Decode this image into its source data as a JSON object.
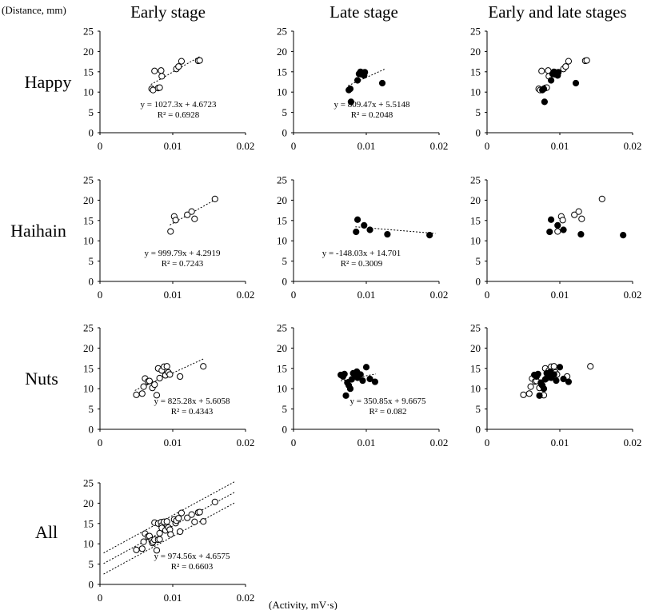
{
  "figure": {
    "y_unit_label": "(Distance, mm)",
    "x_unit_label": "(Activity, mV·s)",
    "column_titles": [
      "Early stage",
      "Late stage",
      "Early and late stages"
    ],
    "row_titles": [
      "Happy",
      "Haihain",
      "Nuts",
      "All"
    ],
    "y_ticks": [
      "0",
      "5",
      "10",
      "15",
      "20",
      "25"
    ],
    "x_ticks": [
      "0",
      "0.01",
      "0.02"
    ]
  },
  "colors": {
    "open_marker_fill": "#ffffff",
    "filled_marker_fill": "#000000",
    "axis": "#000000"
  },
  "chart_data": [
    {
      "id": "happy-early",
      "type": "scatter",
      "row": 0,
      "col": 0,
      "xlim": [
        0,
        0.02
      ],
      "ylim": [
        0,
        25
      ],
      "points": [
        [
          0.0071,
          10.8
        ],
        [
          0.0073,
          10.5
        ],
        [
          0.0075,
          15.2
        ],
        [
          0.008,
          11.0
        ],
        [
          0.0082,
          11.1
        ],
        [
          0.0084,
          15.3
        ],
        [
          0.0085,
          13.9
        ],
        [
          0.0105,
          15.7
        ],
        [
          0.0108,
          16.3
        ],
        [
          0.0112,
          17.6
        ],
        [
          0.0135,
          17.7
        ],
        [
          0.0137,
          17.8
        ]
      ],
      "open": true,
      "trend": {
        "slope": 1027.3,
        "intercept": 4.6723,
        "x": [
          0.007,
          0.0138
        ]
      },
      "equation": "y = 1027.3x + 4.6723",
      "r2": "R² = 0.6928"
    },
    {
      "id": "happy-late",
      "type": "scatter",
      "row": 0,
      "col": 1,
      "xlim": [
        0,
        0.02
      ],
      "ylim": [
        0,
        25
      ],
      "points": [
        [
          0.0076,
          10.5
        ],
        [
          0.0078,
          10.8
        ],
        [
          0.0079,
          7.6
        ],
        [
          0.0088,
          12.9
        ],
        [
          0.009,
          14.5
        ],
        [
          0.0092,
          15.0
        ],
        [
          0.0093,
          14.4
        ],
        [
          0.0095,
          14.8
        ],
        [
          0.0097,
          14.1
        ],
        [
          0.0098,
          14.9
        ],
        [
          0.0122,
          12.2
        ]
      ],
      "filled": true,
      "trend": {
        "slope": 809.47,
        "intercept": 5.5148,
        "x": [
          0.0075,
          0.0125
        ]
      },
      "equation": "y = 809.47x + 5.5148",
      "r2": "R² = 0.2048"
    },
    {
      "id": "happy-both",
      "type": "scatter",
      "row": 0,
      "col": 2,
      "xlim": [
        0,
        0.02
      ],
      "ylim": [
        0,
        25
      ],
      "open_points": [
        [
          0.0071,
          10.8
        ],
        [
          0.0073,
          10.5
        ],
        [
          0.0075,
          15.2
        ],
        [
          0.008,
          11.0
        ],
        [
          0.0082,
          11.1
        ],
        [
          0.0084,
          15.3
        ],
        [
          0.0085,
          13.9
        ],
        [
          0.0105,
          15.7
        ],
        [
          0.0108,
          16.3
        ],
        [
          0.0112,
          17.6
        ],
        [
          0.0135,
          17.7
        ],
        [
          0.0137,
          17.8
        ]
      ],
      "filled_points": [
        [
          0.0076,
          10.5
        ],
        [
          0.0078,
          10.8
        ],
        [
          0.0079,
          7.6
        ],
        [
          0.0088,
          12.9
        ],
        [
          0.009,
          14.5
        ],
        [
          0.0092,
          15.0
        ],
        [
          0.0093,
          14.4
        ],
        [
          0.0095,
          14.8
        ],
        [
          0.0097,
          14.1
        ],
        [
          0.0098,
          14.9
        ],
        [
          0.0122,
          12.2
        ]
      ]
    },
    {
      "id": "haihain-early",
      "type": "scatter",
      "row": 1,
      "col": 0,
      "xlim": [
        0,
        0.02
      ],
      "ylim": [
        0,
        25
      ],
      "points": [
        [
          0.0097,
          12.3
        ],
        [
          0.0102,
          16.0
        ],
        [
          0.0104,
          15.1
        ],
        [
          0.012,
          16.4
        ],
        [
          0.0126,
          17.2
        ],
        [
          0.013,
          15.4
        ],
        [
          0.0158,
          20.3
        ]
      ],
      "open": true,
      "trend": {
        "slope": 999.79,
        "intercept": 4.2919,
        "x": [
          0.0096,
          0.0159
        ]
      },
      "equation": "y = 999.79x + 4.2919",
      "r2": "R² = 0.7243"
    },
    {
      "id": "haihain-late",
      "type": "scatter",
      "row": 1,
      "col": 1,
      "xlim": [
        0,
        0.02
      ],
      "ylim": [
        0,
        25
      ],
      "points": [
        [
          0.0086,
          12.2
        ],
        [
          0.0088,
          15.2
        ],
        [
          0.0097,
          13.8
        ],
        [
          0.0105,
          12.7
        ],
        [
          0.0129,
          11.6
        ],
        [
          0.0187,
          11.4
        ]
      ],
      "filled": true,
      "trend": {
        "slope": -148.03,
        "intercept": 14.701,
        "x": [
          0.0085,
          0.0195
        ]
      },
      "equation": "y = -148.03x + 14.701",
      "r2": "R² = 0.3009"
    },
    {
      "id": "haihain-both",
      "type": "scatter",
      "row": 1,
      "col": 2,
      "xlim": [
        0,
        0.02
      ],
      "ylim": [
        0,
        25
      ],
      "open_points": [
        [
          0.0097,
          12.3
        ],
        [
          0.0102,
          16.0
        ],
        [
          0.0104,
          15.1
        ],
        [
          0.012,
          16.4
        ],
        [
          0.0126,
          17.2
        ],
        [
          0.013,
          15.4
        ],
        [
          0.0158,
          20.3
        ]
      ],
      "filled_points": [
        [
          0.0086,
          12.2
        ],
        [
          0.0088,
          15.2
        ],
        [
          0.0097,
          13.8
        ],
        [
          0.0105,
          12.7
        ],
        [
          0.0129,
          11.6
        ],
        [
          0.0187,
          11.4
        ]
      ]
    },
    {
      "id": "nuts-early",
      "type": "scatter",
      "row": 2,
      "col": 0,
      "xlim": [
        0,
        0.02
      ],
      "ylim": [
        0,
        25
      ],
      "points": [
        [
          0.005,
          8.5
        ],
        [
          0.0058,
          8.8
        ],
        [
          0.006,
          10.5
        ],
        [
          0.0062,
          12.5
        ],
        [
          0.0066,
          11.8
        ],
        [
          0.0068,
          11.9
        ],
        [
          0.0072,
          10.2
        ],
        [
          0.0075,
          11.0
        ],
        [
          0.0078,
          8.4
        ],
        [
          0.008,
          15.0
        ],
        [
          0.0082,
          12.6
        ],
        [
          0.0085,
          14.5
        ],
        [
          0.0088,
          15.4
        ],
        [
          0.009,
          13.3
        ],
        [
          0.0092,
          15.5
        ],
        [
          0.0094,
          14.0
        ],
        [
          0.0096,
          13.5
        ],
        [
          0.011,
          13.0
        ],
        [
          0.0142,
          15.5
        ]
      ],
      "open": true,
      "trend": {
        "slope": 825.28,
        "intercept": 5.6058,
        "x": [
          0.0048,
          0.0142
        ]
      },
      "equation": "y = 825.28x + 5.6058",
      "r2": "R² = 0.4343"
    },
    {
      "id": "nuts-late",
      "type": "scatter",
      "row": 2,
      "col": 1,
      "xlim": [
        0,
        0.02
      ],
      "ylim": [
        0,
        25
      ],
      "points": [
        [
          0.0065,
          13.4
        ],
        [
          0.0068,
          13.0
        ],
        [
          0.007,
          13.6
        ],
        [
          0.0072,
          8.3
        ],
        [
          0.0074,
          11.5
        ],
        [
          0.0076,
          10.8
        ],
        [
          0.0078,
          10.0
        ],
        [
          0.008,
          12.3
        ],
        [
          0.0082,
          13.8
        ],
        [
          0.0085,
          13.2
        ],
        [
          0.0087,
          14.2
        ],
        [
          0.0088,
          12.7
        ],
        [
          0.0092,
          13.5
        ],
        [
          0.0095,
          12.0
        ],
        [
          0.01,
          15.3
        ],
        [
          0.0105,
          12.4
        ],
        [
          0.0112,
          11.7
        ]
      ],
      "filled": true,
      "trend": {
        "slope": 350.85,
        "intercept": 9.6675,
        "x": [
          0.0065,
          0.0113
        ]
      },
      "equation": "y = 350.85x + 9.6675",
      "r2": "R² = 0.082"
    },
    {
      "id": "nuts-both",
      "type": "scatter",
      "row": 2,
      "col": 2,
      "xlim": [
        0,
        0.02
      ],
      "ylim": [
        0,
        25
      ],
      "open_points": [
        [
          0.005,
          8.5
        ],
        [
          0.0058,
          8.8
        ],
        [
          0.006,
          10.5
        ],
        [
          0.0062,
          12.5
        ],
        [
          0.0066,
          11.8
        ],
        [
          0.0068,
          11.9
        ],
        [
          0.0072,
          10.2
        ],
        [
          0.0075,
          11.0
        ],
        [
          0.0078,
          8.4
        ],
        [
          0.008,
          15.0
        ],
        [
          0.0082,
          12.6
        ],
        [
          0.0085,
          14.5
        ],
        [
          0.0088,
          15.4
        ],
        [
          0.009,
          13.3
        ],
        [
          0.0092,
          15.5
        ],
        [
          0.0094,
          14.0
        ],
        [
          0.0096,
          13.5
        ],
        [
          0.011,
          13.0
        ],
        [
          0.0142,
          15.5
        ]
      ],
      "filled_points": [
        [
          0.0065,
          13.4
        ],
        [
          0.0068,
          13.0
        ],
        [
          0.007,
          13.6
        ],
        [
          0.0072,
          8.3
        ],
        [
          0.0074,
          11.5
        ],
        [
          0.0076,
          10.8
        ],
        [
          0.0078,
          10.0
        ],
        [
          0.008,
          12.3
        ],
        [
          0.0082,
          13.8
        ],
        [
          0.0085,
          13.2
        ],
        [
          0.0087,
          14.2
        ],
        [
          0.0088,
          12.7
        ],
        [
          0.0092,
          13.5
        ],
        [
          0.0095,
          12.0
        ],
        [
          0.01,
          15.3
        ],
        [
          0.0105,
          12.4
        ],
        [
          0.0112,
          11.7
        ]
      ]
    },
    {
      "id": "all-combined",
      "type": "scatter",
      "row": 3,
      "col": 0,
      "xlim": [
        0,
        0.02
      ],
      "ylim": [
        0,
        25
      ],
      "points": [
        [
          0.005,
          8.5
        ],
        [
          0.0058,
          8.8
        ],
        [
          0.006,
          10.5
        ],
        [
          0.0062,
          12.5
        ],
        [
          0.0066,
          11.8
        ],
        [
          0.0068,
          11.9
        ],
        [
          0.0071,
          10.8
        ],
        [
          0.0072,
          10.2
        ],
        [
          0.0073,
          10.5
        ],
        [
          0.0075,
          15.2
        ],
        [
          0.0075,
          11.0
        ],
        [
          0.0078,
          8.4
        ],
        [
          0.008,
          11.0
        ],
        [
          0.008,
          15.0
        ],
        [
          0.0082,
          12.6
        ],
        [
          0.0082,
          11.1
        ],
        [
          0.0084,
          15.3
        ],
        [
          0.0085,
          14.5
        ],
        [
          0.0085,
          13.9
        ],
        [
          0.0088,
          15.4
        ],
        [
          0.009,
          13.3
        ],
        [
          0.0092,
          15.5
        ],
        [
          0.0094,
          14.0
        ],
        [
          0.0096,
          13.5
        ],
        [
          0.0097,
          12.3
        ],
        [
          0.0102,
          16.0
        ],
        [
          0.0104,
          15.1
        ],
        [
          0.0105,
          15.7
        ],
        [
          0.0108,
          16.3
        ],
        [
          0.011,
          13.0
        ],
        [
          0.0112,
          17.6
        ],
        [
          0.012,
          16.4
        ],
        [
          0.0126,
          17.2
        ],
        [
          0.013,
          15.4
        ],
        [
          0.0135,
          17.7
        ],
        [
          0.0137,
          17.8
        ],
        [
          0.0142,
          15.5
        ],
        [
          0.0158,
          20.3
        ]
      ],
      "open": true,
      "trend": {
        "slope": 974.56,
        "intercept": 4.6575,
        "x": [
          0.0005,
          0.0185
        ]
      },
      "bands": [
        -2.6,
        2.6
      ],
      "equation": "y = 974.56x + 4.6575",
      "r2": "R² = 0.6603"
    }
  ]
}
